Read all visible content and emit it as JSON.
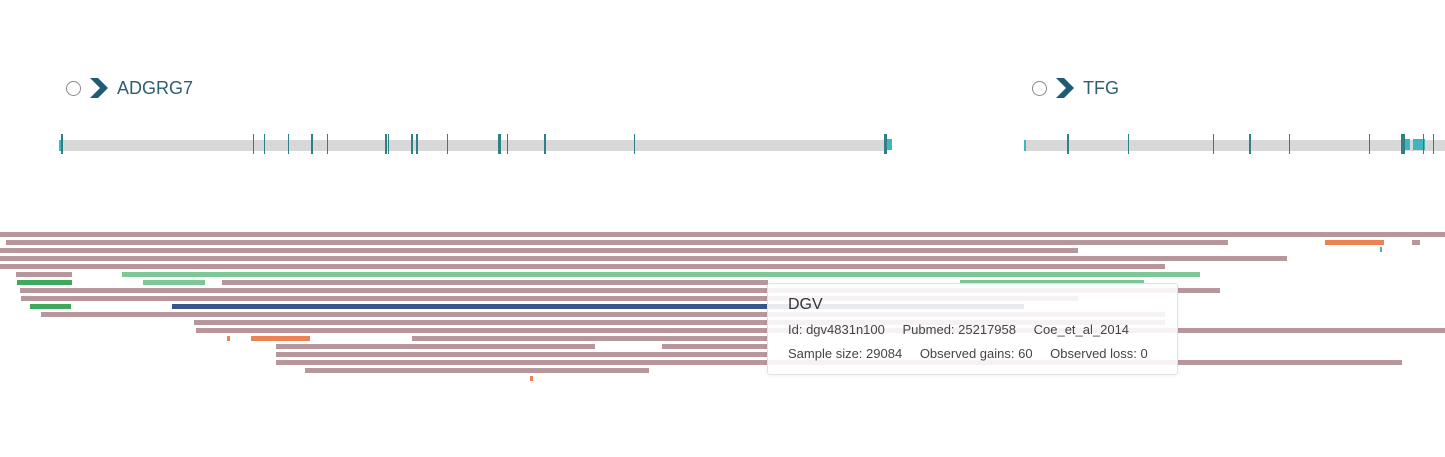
{
  "genes": [
    {
      "name": "ADGRG7",
      "strand_icon": "chevron-right-icon"
    },
    {
      "name": "TFG",
      "strand_icon": "chevron-right-icon"
    }
  ],
  "colors": {
    "loss": "#b7969c",
    "gain_light": "#7dc796",
    "gain_dark": "#3ea85b",
    "complex": "#3a548c",
    "orange": "#ef8252",
    "exon": "#2f7f87",
    "utr": "#3fb5bd",
    "gene_name": "#2d5f73"
  },
  "tooltip": {
    "title": "DGV",
    "id": "Id: dgv4831n100",
    "pubmed": "Pubmed: 25217958",
    "study": "Coe_et_al_2014",
    "sample_size": "Sample size: 29084",
    "gains": "Observed gains: 60",
    "loss": "Observed loss: 0"
  }
}
